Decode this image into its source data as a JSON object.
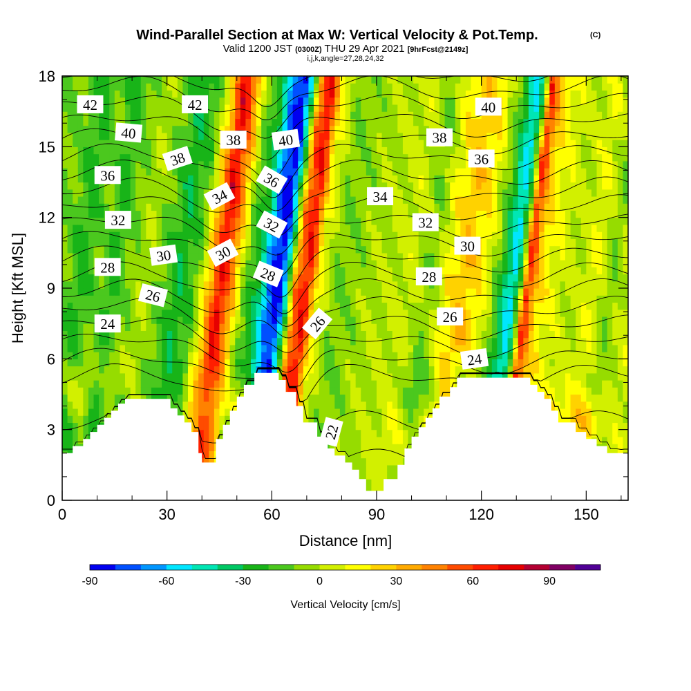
{
  "chart_data": {
    "type": "heatmap",
    "title": "Wind-Parallel Section at Max W: Vertical Velocity & Pot.Temp.",
    "title_mark": "(C)",
    "subtitle": {
      "valid_prefix": "Valid 1200 JST",
      "utc": "(0300Z)",
      "date": "THU 29 Apr 2021",
      "forecast": "[9hrFcst@2149z]"
    },
    "subtitle2": "i,j,k,angle=27,28,24,32",
    "xlabel": "Distance [nm]",
    "ylabel": "Height [Kft MSL]",
    "xlim": [
      0,
      162
    ],
    "ylim": [
      0,
      18
    ],
    "xticks": [
      0,
      30,
      60,
      90,
      120,
      150
    ],
    "yticks": [
      0,
      3,
      6,
      9,
      12,
      15,
      18
    ],
    "colorbar": {
      "label": "Vertical Velocity [cm/s]",
      "min": -90,
      "max": 110,
      "step": 10,
      "tick_values": [
        -90,
        -60,
        -30,
        0,
        30,
        60,
        90
      ],
      "colors": [
        "#0000f0",
        "#0050ff",
        "#0096ff",
        "#00e6ff",
        "#00e6b4",
        "#00c864",
        "#18b418",
        "#4bc81e",
        "#96dc00",
        "#d2f000",
        "#ffff00",
        "#ffd200",
        "#ffaa00",
        "#ff8200",
        "#ff4b00",
        "#ff1e00",
        "#e60000",
        "#b40032",
        "#800064",
        "#500096"
      ]
    },
    "vertical_velocity_bands": [
      {
        "x": 0,
        "w": -10
      },
      {
        "x": 5,
        "w": -25
      },
      {
        "x": 10,
        "w": -10
      },
      {
        "x": 14,
        "w": -25
      },
      {
        "x": 18,
        "w": -10
      },
      {
        "x": 24,
        "w": 0
      },
      {
        "x": 29,
        "w": -15
      },
      {
        "x": 33,
        "w": -30
      },
      {
        "x": 38,
        "w": -15
      },
      {
        "x": 42,
        "w": 30
      },
      {
        "x": 45,
        "w": 75
      },
      {
        "x": 48,
        "w": 45
      },
      {
        "x": 52,
        "w": -10
      },
      {
        "x": 56,
        "w": -30
      },
      {
        "x": 59,
        "w": -70
      },
      {
        "x": 62,
        "w": -90
      },
      {
        "x": 64,
        "w": -50
      },
      {
        "x": 67,
        "w": 50
      },
      {
        "x": 70,
        "w": 70
      },
      {
        "x": 73,
        "w": 15
      },
      {
        "x": 78,
        "w": -10
      },
      {
        "x": 85,
        "w": -5
      },
      {
        "x": 92,
        "w": 0
      },
      {
        "x": 100,
        "w": 5
      },
      {
        "x": 105,
        "w": -10
      },
      {
        "x": 110,
        "w": 15
      },
      {
        "x": 115,
        "w": 30
      },
      {
        "x": 120,
        "w": 15
      },
      {
        "x": 124,
        "w": -10
      },
      {
        "x": 127,
        "w": -40
      },
      {
        "x": 129,
        "w": -55
      },
      {
        "x": 131,
        "w": -15
      },
      {
        "x": 133,
        "w": 65
      },
      {
        "x": 136,
        "w": 25
      },
      {
        "x": 140,
        "w": 10
      },
      {
        "x": 146,
        "w": 0
      },
      {
        "x": 152,
        "w": 10
      },
      {
        "x": 157,
        "w": -10
      },
      {
        "x": 162,
        "w": 5
      }
    ],
    "band_tilt_nm_per_kft": 0.85,
    "lower_field": [
      {
        "x": 4,
        "h": 5,
        "w": 25
      },
      {
        "x": 14,
        "h": 6,
        "w": 20
      },
      {
        "x": 40,
        "h": 4,
        "w": 30
      },
      {
        "x": 52,
        "h": 4,
        "w": 40
      },
      {
        "x": 58,
        "h": 6.5,
        "w": -30
      },
      {
        "x": 95,
        "h": 3,
        "w": 10
      },
      {
        "x": 102,
        "h": 5,
        "w": -30
      },
      {
        "x": 116,
        "h": 5,
        "w": -25
      },
      {
        "x": 141,
        "h": 4,
        "w": 30
      },
      {
        "x": 150,
        "h": 3.5,
        "w": 40
      },
      {
        "x": 156,
        "h": 7,
        "w": 0
      }
    ],
    "potential_temperature_contours": {
      "levels": [
        22,
        23,
        24,
        25,
        26,
        27,
        28,
        29,
        30,
        31,
        32,
        33,
        34,
        35,
        36,
        37,
        38,
        39,
        40,
        41,
        42
      ],
      "labels": [
        {
          "text": "42",
          "x": 8,
          "y": 16.8,
          "angle": 0
        },
        {
          "text": "42",
          "x": 38,
          "y": 16.8,
          "angle": 0
        },
        {
          "text": "40",
          "x": 19,
          "y": 15.6,
          "angle": 5
        },
        {
          "text": "40",
          "x": 64,
          "y": 15.3,
          "angle": -8
        },
        {
          "text": "40",
          "x": 122,
          "y": 16.7,
          "angle": 0
        },
        {
          "text": "38",
          "x": 33,
          "y": 14.5,
          "angle": -18
        },
        {
          "text": "38",
          "x": 49,
          "y": 15.3,
          "angle": 0
        },
        {
          "text": "38",
          "x": 108,
          "y": 15.4,
          "angle": 0
        },
        {
          "text": "36",
          "x": 13,
          "y": 13.8,
          "angle": 0
        },
        {
          "text": "36",
          "x": 60,
          "y": 13.6,
          "angle": 30
        },
        {
          "text": "36",
          "x": 120,
          "y": 14.5,
          "angle": 0
        },
        {
          "text": "34",
          "x": 45,
          "y": 12.9,
          "angle": -28
        },
        {
          "text": "34",
          "x": 91,
          "y": 12.9,
          "angle": 0
        },
        {
          "text": "32",
          "x": 16,
          "y": 11.9,
          "angle": 0
        },
        {
          "text": "32",
          "x": 60,
          "y": 11.7,
          "angle": 28
        },
        {
          "text": "32",
          "x": 104,
          "y": 11.8,
          "angle": 0
        },
        {
          "text": "30",
          "x": 29,
          "y": 10.4,
          "angle": -8
        },
        {
          "text": "30",
          "x": 46,
          "y": 10.5,
          "angle": -28
        },
        {
          "text": "30",
          "x": 116,
          "y": 10.8,
          "angle": 0
        },
        {
          "text": "28",
          "x": 13,
          "y": 9.9,
          "angle": 0
        },
        {
          "text": "28",
          "x": 59,
          "y": 9.6,
          "angle": 22
        },
        {
          "text": "28",
          "x": 105,
          "y": 9.5,
          "angle": 0
        },
        {
          "text": "26",
          "x": 26,
          "y": 8.7,
          "angle": 14
        },
        {
          "text": "26",
          "x": 73,
          "y": 7.5,
          "angle": -50
        },
        {
          "text": "26",
          "x": 111,
          "y": 7.8,
          "angle": 0
        },
        {
          "text": "24",
          "x": 13,
          "y": 7.5,
          "angle": 0
        },
        {
          "text": "24",
          "x": 118,
          "y": 6.0,
          "angle": -8
        },
        {
          "text": "22",
          "x": 77,
          "y": 2.9,
          "angle": -75
        }
      ]
    },
    "terrain_kft": [
      [
        0,
        2.0
      ],
      [
        3,
        2.0
      ],
      [
        3,
        2.3
      ],
      [
        6,
        2.3
      ],
      [
        6,
        2.6
      ],
      [
        8,
        2.6
      ],
      [
        8,
        2.9
      ],
      [
        10,
        2.9
      ],
      [
        10,
        3.2
      ],
      [
        12,
        3.2
      ],
      [
        12,
        3.5
      ],
      [
        14,
        3.5
      ],
      [
        14,
        3.8
      ],
      [
        16,
        3.8
      ],
      [
        16,
        4.1
      ],
      [
        18,
        4.1
      ],
      [
        18,
        4.3
      ],
      [
        31,
        4.3
      ],
      [
        31,
        3.9
      ],
      [
        33,
        3.9
      ],
      [
        33,
        3.6
      ],
      [
        35,
        3.6
      ],
      [
        35,
        3.3
      ],
      [
        37,
        3.3
      ],
      [
        37,
        2.9
      ],
      [
        39,
        2.9
      ],
      [
        39,
        2.0
      ],
      [
        40,
        2.0
      ],
      [
        40,
        1.6
      ],
      [
        44,
        1.6
      ],
      [
        44,
        2.6
      ],
      [
        46,
        2.6
      ],
      [
        46,
        3.2
      ],
      [
        48,
        3.2
      ],
      [
        48,
        3.8
      ],
      [
        50,
        3.8
      ],
      [
        50,
        4.4
      ],
      [
        52,
        4.4
      ],
      [
        52,
        4.9
      ],
      [
        55,
        4.9
      ],
      [
        55,
        5.4
      ],
      [
        62,
        5.4
      ],
      [
        62,
        5.1
      ],
      [
        64,
        5.1
      ],
      [
        64,
        4.6
      ],
      [
        67,
        4.6
      ],
      [
        67,
        4.0
      ],
      [
        69,
        4.0
      ],
      [
        69,
        3.3
      ],
      [
        73,
        3.3
      ],
      [
        73,
        2.7
      ],
      [
        76,
        2.7
      ],
      [
        76,
        2.2
      ],
      [
        78,
        2.2
      ],
      [
        78,
        1.9
      ],
      [
        81,
        1.9
      ],
      [
        81,
        1.6
      ],
      [
        83,
        1.6
      ],
      [
        83,
        1.3
      ],
      [
        85,
        1.3
      ],
      [
        85,
        0.9
      ],
      [
        87,
        0.9
      ],
      [
        87,
        0.4
      ],
      [
        92,
        0.4
      ],
      [
        92,
        0.9
      ],
      [
        96,
        0.9
      ],
      [
        96,
        1.5
      ],
      [
        98,
        1.5
      ],
      [
        98,
        2.2
      ],
      [
        100,
        2.2
      ],
      [
        100,
        2.7
      ],
      [
        102,
        2.7
      ],
      [
        102,
        3.1
      ],
      [
        104,
        3.1
      ],
      [
        104,
        3.5
      ],
      [
        106,
        3.5
      ],
      [
        106,
        3.9
      ],
      [
        108,
        3.9
      ],
      [
        108,
        4.4
      ],
      [
        111,
        4.4
      ],
      [
        111,
        4.8
      ],
      [
        113,
        4.8
      ],
      [
        113,
        5.2
      ],
      [
        134,
        5.2
      ],
      [
        134,
        4.9
      ],
      [
        136,
        4.9
      ],
      [
        136,
        4.6
      ],
      [
        138,
        4.6
      ],
      [
        138,
        4.3
      ],
      [
        140,
        4.3
      ],
      [
        140,
        3.8
      ],
      [
        142,
        3.8
      ],
      [
        142,
        3.3
      ],
      [
        147,
        3.3
      ],
      [
        147,
        2.9
      ],
      [
        150,
        2.9
      ],
      [
        150,
        2.6
      ],
      [
        153,
        2.6
      ],
      [
        153,
        2.3
      ],
      [
        156,
        2.3
      ],
      [
        156,
        2.0
      ],
      [
        162,
        2.0
      ]
    ]
  }
}
